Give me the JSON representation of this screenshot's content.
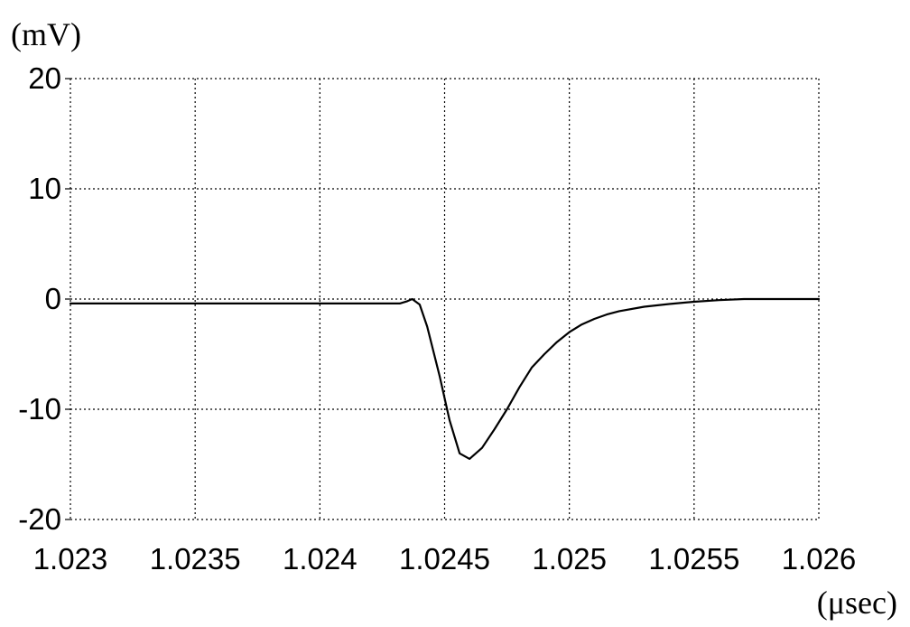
{
  "chart_data": {
    "type": "line",
    "ylabel": "(mV)",
    "xlabel": "(μsec)",
    "xlim": [
      1.023,
      1.026
    ],
    "ylim": [
      -20,
      20
    ],
    "x_ticks": [
      1.023,
      1.0235,
      1.024,
      1.0245,
      1.025,
      1.0255,
      1.026
    ],
    "x_tick_labels": [
      "1.023",
      "1.0235",
      "1.024",
      "1.0245",
      "1.025",
      "1.0255",
      "1.026"
    ],
    "y_ticks": [
      20,
      10,
      0,
      -10,
      -20
    ],
    "y_tick_labels": [
      "20",
      "10",
      "0",
      "-10",
      "-20"
    ],
    "grid": true,
    "series": [
      {
        "x": [
          1.023,
          1.0235,
          1.024,
          1.02432,
          1.02435,
          1.02437,
          1.0244,
          1.02443,
          1.02448,
          1.02452,
          1.02456,
          1.0246,
          1.02465,
          1.0247,
          1.02475,
          1.0248,
          1.02485,
          1.0249,
          1.02495,
          1.025,
          1.02505,
          1.0251,
          1.02515,
          1.0252,
          1.0253,
          1.0254,
          1.0255,
          1.0256,
          1.0257,
          1.0258,
          1.026
        ],
        "y": [
          -0.4,
          -0.4,
          -0.4,
          -0.4,
          -0.2,
          0.0,
          -0.5,
          -2.5,
          -7.0,
          -11.0,
          -14.0,
          -14.5,
          -13.5,
          -11.8,
          -10.0,
          -8.0,
          -6.2,
          -5.0,
          -3.9,
          -3.0,
          -2.3,
          -1.8,
          -1.4,
          -1.1,
          -0.7,
          -0.45,
          -0.25,
          -0.1,
          0.0,
          0.0,
          0.0
        ]
      }
    ]
  }
}
